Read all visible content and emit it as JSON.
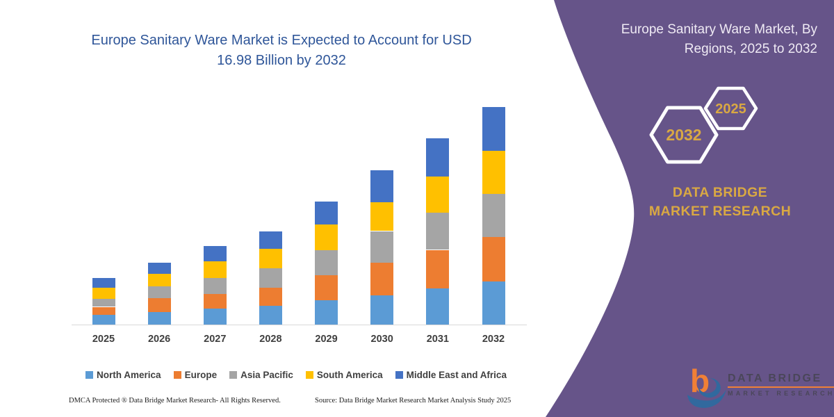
{
  "chart": {
    "title": "Europe Sanitary Ware Market is Expected to Account for USD 16.98 Billion by 2032"
  },
  "chart_data": {
    "type": "bar",
    "stacked": true,
    "title": "Europe Sanitary Ware Market is Expected to Account for USD 16.98 Billion by 2032",
    "unit": "USD Billion",
    "categories": [
      "2025",
      "2026",
      "2027",
      "2028",
      "2029",
      "2030",
      "2031",
      "2032"
    ],
    "series": [
      {
        "name": "North America",
        "color": "#5B9BD5",
        "values": [
          0.78,
          0.96,
          1.23,
          1.45,
          1.9,
          2.3,
          2.81,
          3.35
        ]
      },
      {
        "name": "Europe",
        "color": "#ED7D31",
        "values": [
          0.6,
          1.09,
          1.17,
          1.41,
          1.94,
          2.54,
          3.02,
          3.49
        ]
      },
      {
        "name": "Asia Pacific",
        "color": "#A5A5A5",
        "values": [
          0.62,
          0.94,
          1.22,
          1.54,
          1.99,
          2.46,
          2.9,
          3.38
        ]
      },
      {
        "name": "South America",
        "color": "#FFC000",
        "values": [
          0.9,
          0.96,
          1.32,
          1.54,
          1.99,
          2.26,
          2.82,
          3.37
        ]
      },
      {
        "name": "Middle East and Africa",
        "color": "#4472C4",
        "values": [
          0.73,
          0.9,
          1.18,
          1.36,
          1.81,
          2.51,
          2.97,
          3.39
        ]
      }
    ],
    "totals": [
      3.63,
      4.85,
      6.12,
      7.3,
      9.63,
      12.07,
      14.52,
      16.98
    ],
    "xlabel": "",
    "ylabel": "",
    "ylim": [
      0,
      16.98
    ],
    "grid": false,
    "y_axis_visible": false,
    "legend_position": "bottom"
  },
  "side_panel": {
    "title": "Europe Sanitary Ware Market, By Regions, 2025 to 2032",
    "hexagons": [
      {
        "label": "2032"
      },
      {
        "label": "2025"
      }
    ],
    "brand_text": "DATA BRIDGE MARKET RESEARCH",
    "colors": {
      "panel": "#665489",
      "gold": "#D9A843",
      "hexagon_outline": "#FFFFFF"
    }
  },
  "logo": {
    "monogram": "b",
    "line1": "DATA BRIDGE",
    "line2": "MARKET RESEARCH"
  },
  "footer": {
    "left": "DMCA Protected ® Data Bridge Market Research-  All Rights Reserved.",
    "right": "Source: Data Bridge Market Research  Market Analysis Study 2025"
  }
}
